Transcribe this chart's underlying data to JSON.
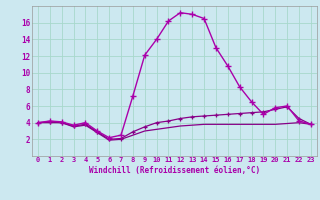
{
  "xlabel": "Windchill (Refroidissement éolien,°C)",
  "bg_color": "#cce8f0",
  "grid_color": "#a8d8cc",
  "line_color": "#aa00aa",
  "line_color2": "#880088",
  "x_values": [
    0,
    1,
    2,
    3,
    4,
    5,
    6,
    7,
    8,
    9,
    10,
    11,
    12,
    13,
    14,
    15,
    16,
    17,
    18,
    19,
    20,
    21,
    22,
    23
  ],
  "series1": [
    4.0,
    4.2,
    4.1,
    3.7,
    4.0,
    3.0,
    2.2,
    2.5,
    7.2,
    12.1,
    14.0,
    16.2,
    17.2,
    17.0,
    16.5,
    13.0,
    10.8,
    8.3,
    6.5,
    5.0,
    5.8,
    6.0,
    4.2,
    3.8
  ],
  "series2": [
    4.0,
    4.1,
    4.0,
    3.6,
    3.8,
    2.9,
    2.0,
    2.1,
    2.9,
    3.5,
    4.0,
    4.2,
    4.5,
    4.7,
    4.8,
    4.9,
    5.0,
    5.1,
    5.2,
    5.3,
    5.6,
    5.9,
    4.5,
    3.8
  ],
  "series3": [
    4.0,
    4.0,
    4.0,
    3.5,
    3.7,
    2.8,
    1.9,
    2.0,
    2.5,
    3.0,
    3.2,
    3.4,
    3.6,
    3.7,
    3.8,
    3.8,
    3.8,
    3.8,
    3.8,
    3.8,
    3.8,
    3.9,
    4.0,
    3.8
  ],
  "ylim": [
    0,
    18
  ],
  "yticks": [
    2,
    4,
    6,
    8,
    10,
    12,
    14,
    16
  ],
  "xlim_min": -0.5,
  "xlim_max": 23.5
}
